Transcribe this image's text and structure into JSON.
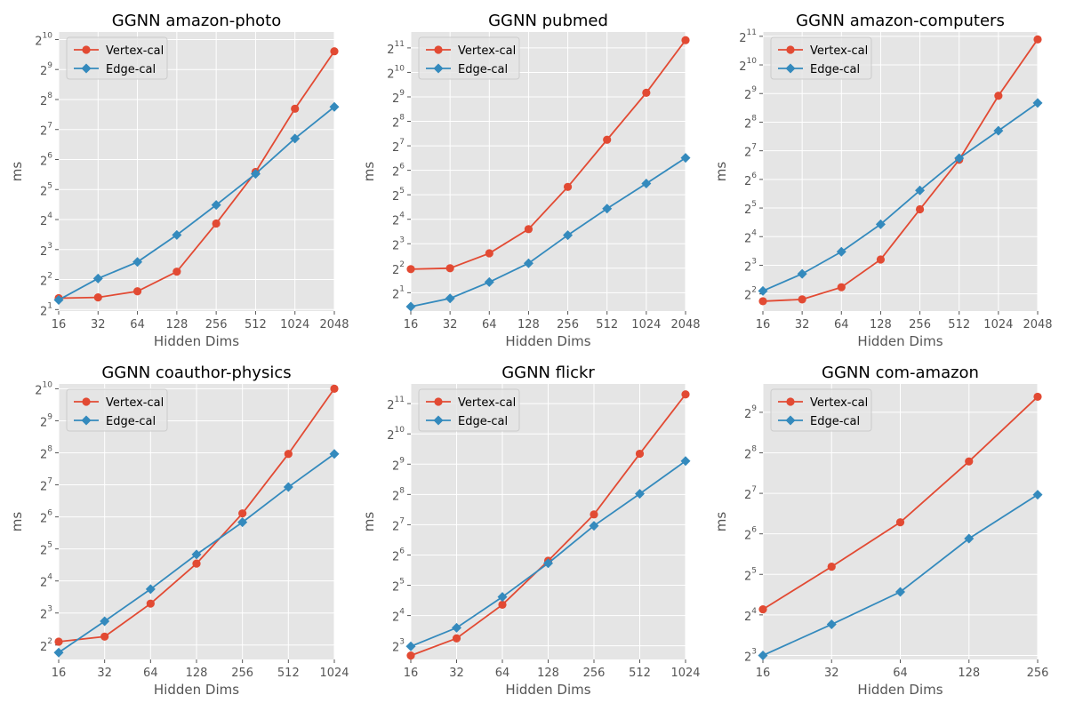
{
  "colors": {
    "vertex": "#E24A33",
    "edge": "#348ABD",
    "panel_bg": "#E5E5E5",
    "grid": "#FFFFFF",
    "text": "#555555",
    "title": "#000000"
  },
  "chart_data": [
    {
      "type": "line",
      "title": "GGNN amazon-photo",
      "xlabel": "Hidden Dims",
      "ylabel": "ms",
      "x": [
        16,
        32,
        64,
        128,
        256,
        512,
        1024,
        2048
      ],
      "x_tick_labels": [
        "16",
        "32",
        "64",
        "128",
        "256",
        "512",
        "1024",
        "2048"
      ],
      "x_scale": "log2",
      "y_scale": "log2",
      "ylim_exp": [
        0.95,
        10.25
      ],
      "y_ticks": [
        {
          "base": "2",
          "exp": "1"
        },
        {
          "base": "2",
          "exp": "2"
        },
        {
          "base": "2",
          "exp": "3"
        },
        {
          "base": "2",
          "exp": "4"
        },
        {
          "base": "2",
          "exp": "5"
        },
        {
          "base": "2",
          "exp": "6"
        },
        {
          "base": "2",
          "exp": "7"
        },
        {
          "base": "2",
          "exp": "8"
        },
        {
          "base": "2",
          "exp": "9"
        },
        {
          "base": "2",
          "exp": "10"
        }
      ],
      "legend": "upper-left",
      "series": [
        {
          "name": "Vertex-cal",
          "marker": "circle",
          "values": [
            2.6,
            2.65,
            3.05,
            4.8,
            14.6,
            48,
            207,
            780
          ]
        },
        {
          "name": "Edge-cal",
          "marker": "diamond",
          "values": [
            2.5,
            4.1,
            6.0,
            11.2,
            22.4,
            46,
            104,
            216
          ]
        }
      ]
    },
    {
      "type": "line",
      "title": "GGNN pubmed",
      "xlabel": "Hidden Dims",
      "ylabel": "ms",
      "x": [
        16,
        32,
        64,
        128,
        256,
        512,
        1024,
        2048
      ],
      "x_tick_labels": [
        "16",
        "32",
        "64",
        "128",
        "256",
        "512",
        "1024",
        "2048"
      ],
      "x_scale": "log2",
      "y_scale": "log2",
      "ylim_exp": [
        0.25,
        11.65
      ],
      "y_ticks": [
        {
          "base": "2",
          "exp": "1"
        },
        {
          "base": "2",
          "exp": "2"
        },
        {
          "base": "2",
          "exp": "3"
        },
        {
          "base": "2",
          "exp": "4"
        },
        {
          "base": "2",
          "exp": "5"
        },
        {
          "base": "2",
          "exp": "6"
        },
        {
          "base": "2",
          "exp": "7"
        },
        {
          "base": "2",
          "exp": "8"
        },
        {
          "base": "2",
          "exp": "9"
        },
        {
          "base": "2",
          "exp": "10"
        },
        {
          "base": "2",
          "exp": "11"
        }
      ],
      "legend": "upper-left",
      "series": [
        {
          "name": "Vertex-cal",
          "marker": "circle",
          "values": [
            3.9,
            4.0,
            6.1,
            12.1,
            40,
            152,
            575,
            2550
          ]
        },
        {
          "name": "Edge-cal",
          "marker": "diamond",
          "values": [
            1.35,
            1.7,
            2.7,
            4.6,
            10.2,
            21.6,
            44,
            91
          ]
        }
      ]
    },
    {
      "type": "line",
      "title": "GGNN amazon-computers",
      "xlabel": "Hidden Dims",
      "ylabel": "ms",
      "x": [
        16,
        32,
        64,
        128,
        256,
        512,
        1024,
        2048
      ],
      "x_tick_labels": [
        "16",
        "32",
        "64",
        "128",
        "256",
        "512",
        "1024",
        "2048"
      ],
      "x_scale": "log2",
      "y_scale": "log2",
      "ylim_exp": [
        1.4,
        11.15
      ],
      "y_ticks": [
        {
          "base": "2",
          "exp": "2"
        },
        {
          "base": "2",
          "exp": "3"
        },
        {
          "base": "2",
          "exp": "4"
        },
        {
          "base": "2",
          "exp": "5"
        },
        {
          "base": "2",
          "exp": "6"
        },
        {
          "base": "2",
          "exp": "7"
        },
        {
          "base": "2",
          "exp": "8"
        },
        {
          "base": "2",
          "exp": "9"
        },
        {
          "base": "2",
          "exp": "10"
        },
        {
          "base": "2",
          "exp": "11"
        }
      ],
      "legend": "upper-left",
      "series": [
        {
          "name": "Vertex-cal",
          "marker": "circle",
          "values": [
            3.35,
            3.5,
            4.7,
            9.2,
            31,
            103,
            485,
            1900
          ]
        },
        {
          "name": "Edge-cal",
          "marker": "diamond",
          "values": [
            4.3,
            6.5,
            11.1,
            21.6,
            49,
            107,
            208,
            407
          ]
        }
      ]
    },
    {
      "type": "line",
      "title": "GGNN coauthor-physics",
      "xlabel": "Hidden Dims",
      "ylabel": "ms",
      "x": [
        16,
        32,
        64,
        128,
        256,
        512,
        1024
      ],
      "x_tick_labels": [
        "16",
        "32",
        "64",
        "128",
        "256",
        "512",
        "1024"
      ],
      "x_scale": "log2",
      "y_scale": "log2",
      "ylim_exp": [
        1.55,
        10.15
      ],
      "y_ticks": [
        {
          "base": "2",
          "exp": "2"
        },
        {
          "base": "2",
          "exp": "3"
        },
        {
          "base": "2",
          "exp": "4"
        },
        {
          "base": "2",
          "exp": "5"
        },
        {
          "base": "2",
          "exp": "6"
        },
        {
          "base": "2",
          "exp": "7"
        },
        {
          "base": "2",
          "exp": "8"
        },
        {
          "base": "2",
          "exp": "9"
        },
        {
          "base": "2",
          "exp": "10"
        }
      ],
      "legend": "upper-left",
      "series": [
        {
          "name": "Vertex-cal",
          "marker": "circle",
          "values": [
            4.3,
            4.8,
            9.8,
            23.3,
            69,
            250,
            1024
          ]
        },
        {
          "name": "Edge-cal",
          "marker": "diamond",
          "values": [
            3.4,
            6.7,
            13.4,
            28.4,
            57,
            122,
            250
          ]
        }
      ]
    },
    {
      "type": "line",
      "title": "GGNN flickr",
      "xlabel": "Hidden Dims",
      "ylabel": "ms",
      "x": [
        16,
        32,
        64,
        128,
        256,
        512,
        1024
      ],
      "x_tick_labels": [
        "16",
        "32",
        "64",
        "128",
        "256",
        "512",
        "1024"
      ],
      "x_scale": "log2",
      "y_scale": "log2",
      "ylim_exp": [
        2.55,
        11.65
      ],
      "y_ticks": [
        {
          "base": "2",
          "exp": "3"
        },
        {
          "base": "2",
          "exp": "4"
        },
        {
          "base": "2",
          "exp": "5"
        },
        {
          "base": "2",
          "exp": "6"
        },
        {
          "base": "2",
          "exp": "7"
        },
        {
          "base": "2",
          "exp": "8"
        },
        {
          "base": "2",
          "exp": "9"
        },
        {
          "base": "2",
          "exp": "10"
        },
        {
          "base": "2",
          "exp": "11"
        }
      ],
      "legend": "upper-left",
      "series": [
        {
          "name": "Vertex-cal",
          "marker": "circle",
          "values": [
            6.4,
            9.5,
            20.5,
            56,
            162,
            650,
            2530
          ]
        },
        {
          "name": "Edge-cal",
          "marker": "diamond",
          "values": [
            7.9,
            12.1,
            24.5,
            53,
            125,
            260,
            550
          ]
        }
      ]
    },
    {
      "type": "line",
      "title": "GGNN com-amazon",
      "xlabel": "Hidden Dims",
      "ylabel": "ms",
      "x": [
        16,
        32,
        64,
        128,
        256
      ],
      "x_tick_labels": [
        "16",
        "32",
        "64",
        "128",
        "256"
      ],
      "x_scale": "log2",
      "y_scale": "log2",
      "ylim_exp": [
        2.9,
        9.7
      ],
      "y_ticks": [
        {
          "base": "2",
          "exp": "3"
        },
        {
          "base": "2",
          "exp": "4"
        },
        {
          "base": "2",
          "exp": "5"
        },
        {
          "base": "2",
          "exp": "6"
        },
        {
          "base": "2",
          "exp": "7"
        },
        {
          "base": "2",
          "exp": "8"
        },
        {
          "base": "2",
          "exp": "9"
        }
      ],
      "legend": "upper-left",
      "series": [
        {
          "name": "Vertex-cal",
          "marker": "circle",
          "values": [
            17.6,
            36.5,
            78,
            221,
            668
          ]
        },
        {
          "name": "Edge-cal",
          "marker": "diamond",
          "values": [
            8.0,
            13.6,
            23.7,
            59,
            125
          ]
        }
      ]
    }
  ]
}
